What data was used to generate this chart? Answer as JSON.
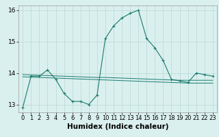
{
  "xlabel": "Humidex (Indice chaleur)",
  "x": [
    0,
    1,
    2,
    3,
    4,
    5,
    6,
    7,
    8,
    9,
    10,
    11,
    12,
    13,
    14,
    15,
    16,
    17,
    18,
    19,
    20,
    21,
    22,
    23
  ],
  "y_main": [
    12.9,
    13.9,
    13.9,
    14.1,
    13.8,
    13.35,
    13.1,
    13.1,
    13.0,
    13.3,
    15.1,
    15.5,
    15.75,
    15.9,
    16.0,
    15.1,
    14.8,
    14.4,
    13.8,
    13.75,
    13.7,
    14.0,
    13.95,
    13.9
  ],
  "y_smooth1": [
    13.88,
    13.87,
    13.86,
    13.85,
    13.84,
    13.83,
    13.82,
    13.81,
    13.8,
    13.79,
    13.78,
    13.77,
    13.76,
    13.75,
    13.74,
    13.73,
    13.72,
    13.71,
    13.7,
    13.69,
    13.68,
    13.68,
    13.68,
    13.68
  ],
  "y_smooth2": [
    13.95,
    13.94,
    13.93,
    13.92,
    13.91,
    13.9,
    13.89,
    13.88,
    13.87,
    13.86,
    13.86,
    13.85,
    13.84,
    13.83,
    13.82,
    13.81,
    13.8,
    13.79,
    13.78,
    13.77,
    13.77,
    13.77,
    13.77,
    13.77
  ],
  "ylim": [
    12.75,
    16.15
  ],
  "yticks": [
    13,
    14,
    15,
    16
  ],
  "line_color": "#1a7a6e",
  "bg_color": "#daf0ee",
  "grid_color": "#b8d8d4",
  "tick_fontsize": 6.5,
  "label_fontsize": 7.5
}
